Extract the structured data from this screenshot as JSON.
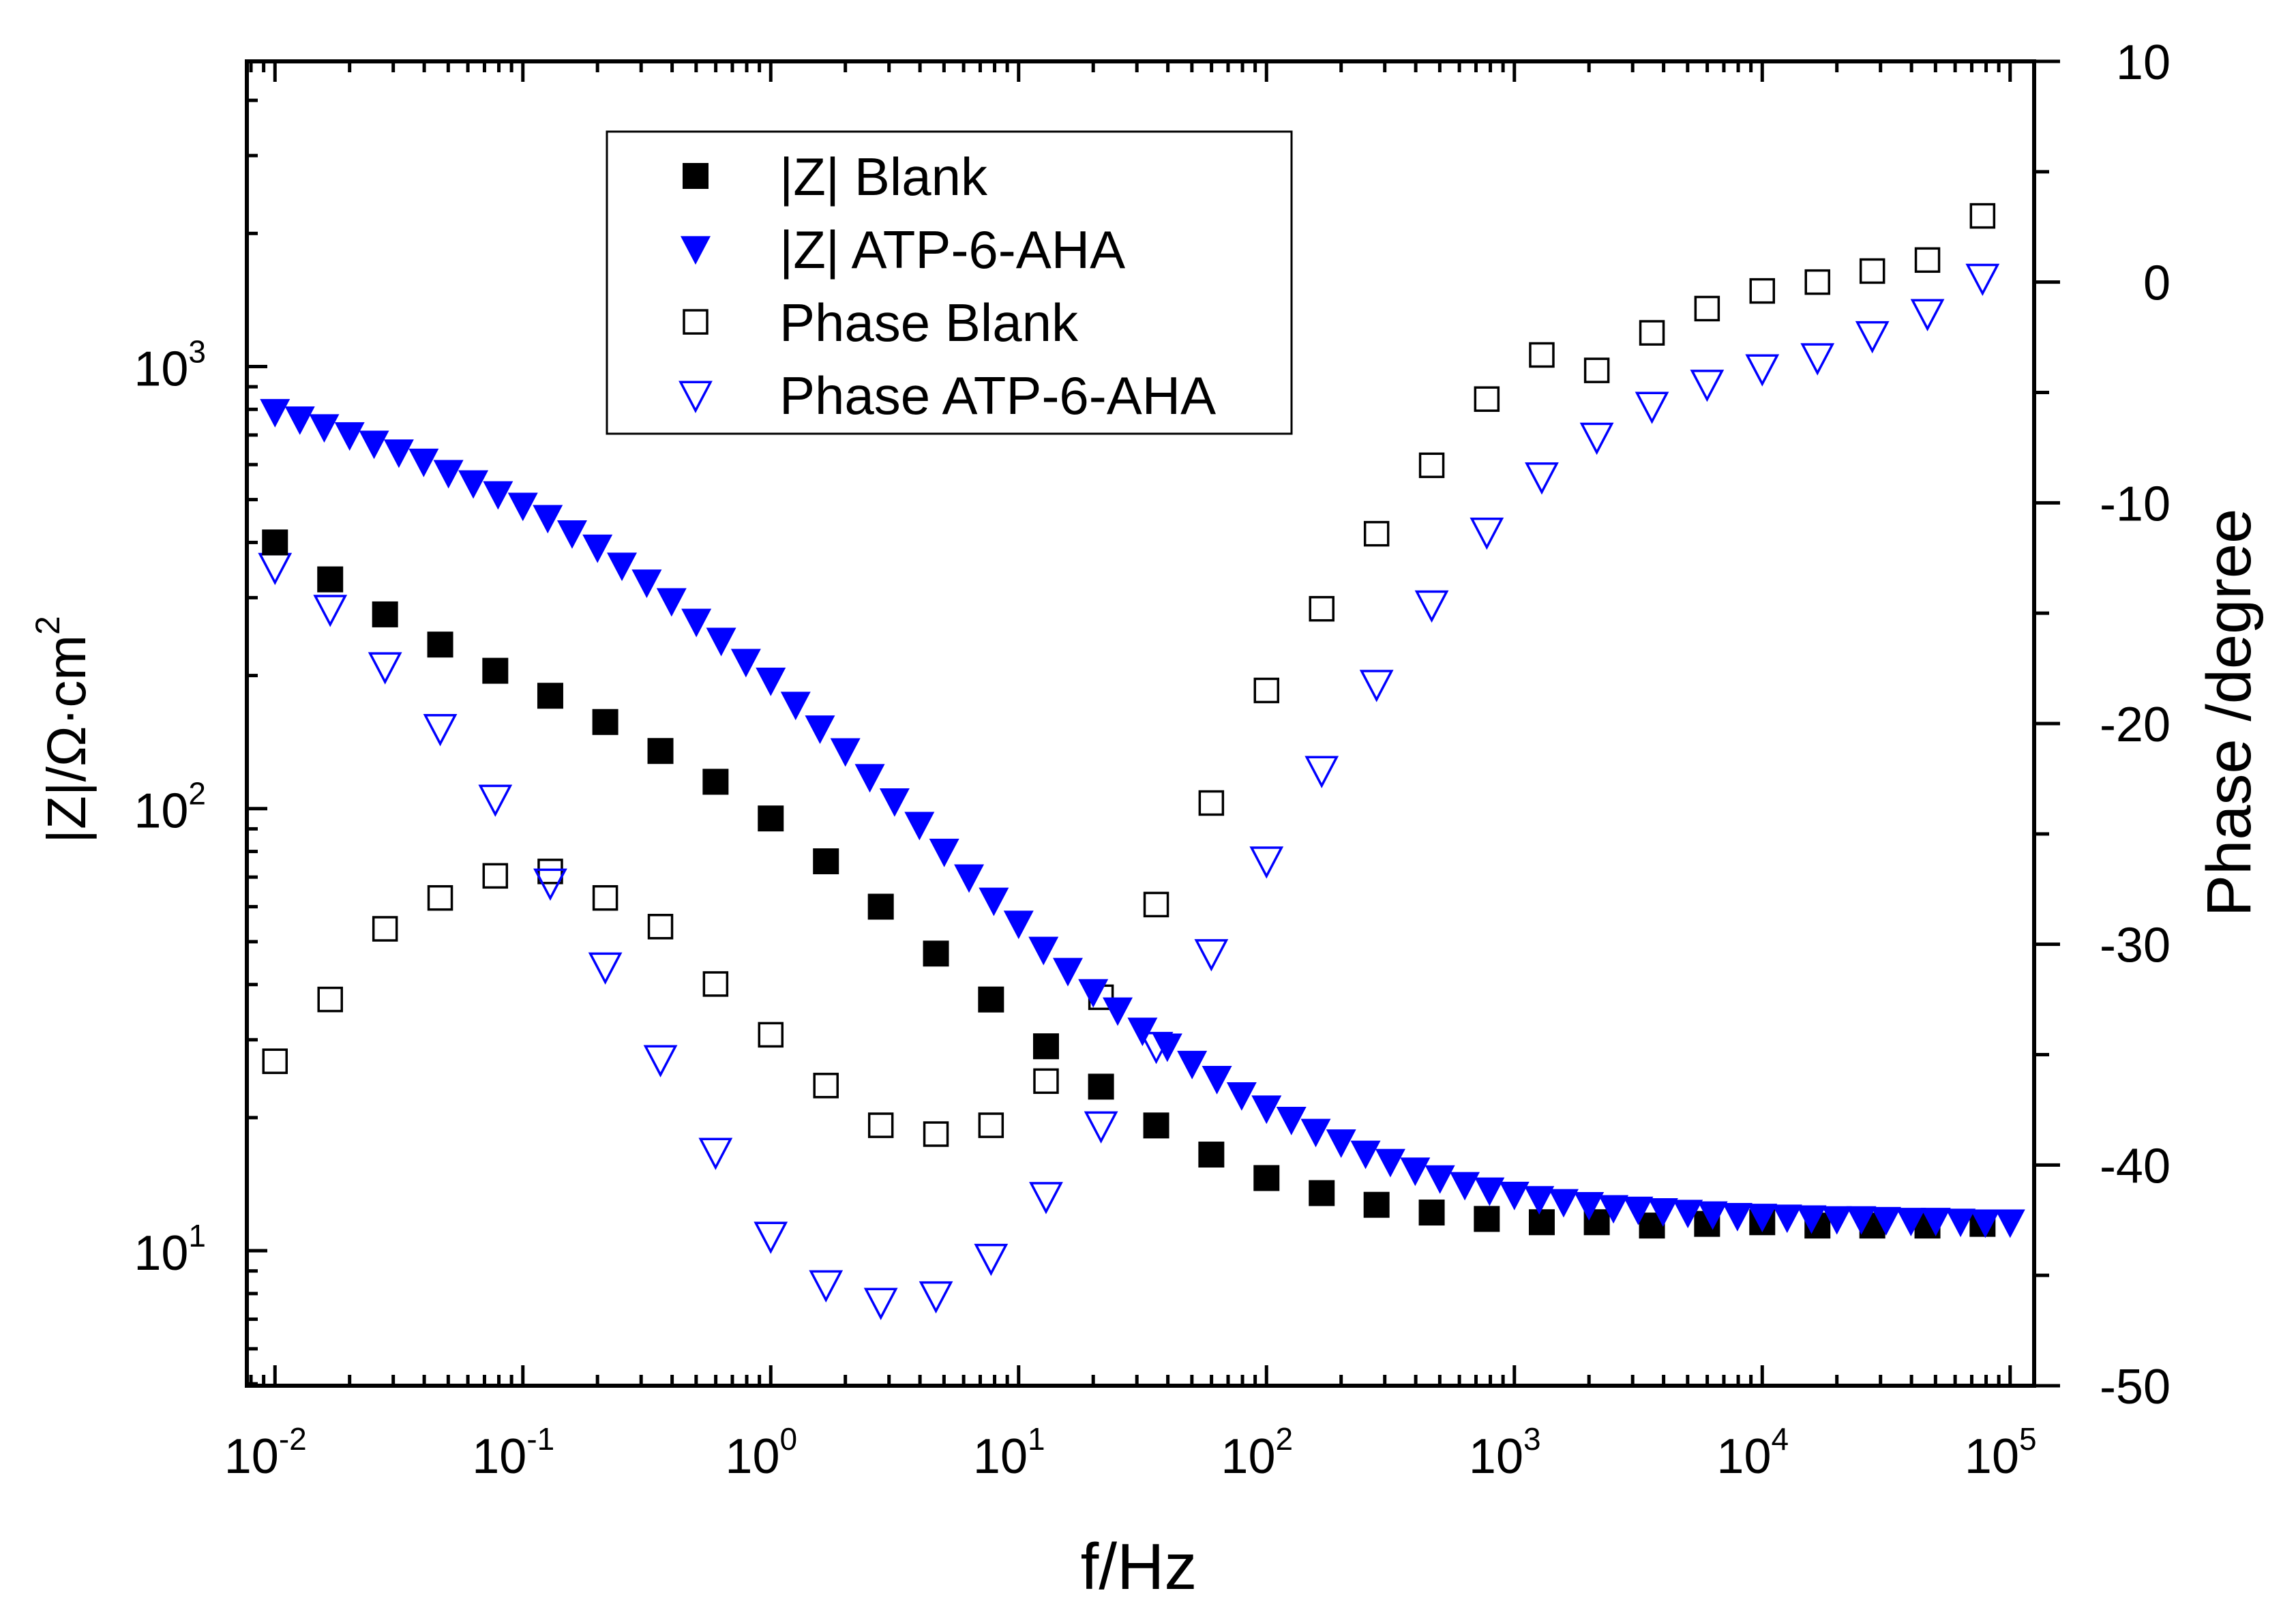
{
  "chart_data": {
    "type": "scatter",
    "title": "",
    "xlabel": "f/Hz",
    "ylabel_left": "|Z|/Ω·cm²",
    "ylabel_left_parts": {
      "main": "|Z|/Ω·cm",
      "sup": "2"
    },
    "ylabel_right": "Phase /degree",
    "x_scale": "log",
    "xlim": [
      0.0077,
      125000
    ],
    "y_left_scale": "log",
    "y_left_lim": [
      4.95,
      4900
    ],
    "y_right_lim": [
      -50,
      10
    ],
    "grid": false,
    "legend_position": "top-center",
    "x_ticks": [
      {
        "base": "10",
        "exp": "-2",
        "value": 0.01
      },
      {
        "base": "10",
        "exp": "-1",
        "value": 0.1
      },
      {
        "base": "10",
        "exp": "0",
        "value": 1
      },
      {
        "base": "10",
        "exp": "1",
        "value": 10
      },
      {
        "base": "10",
        "exp": "2",
        "value": 100
      },
      {
        "base": "10",
        "exp": "3",
        "value": 1000
      },
      {
        "base": "10",
        "exp": "4",
        "value": 10000
      },
      {
        "base": "10",
        "exp": "5",
        "value": 100000
      }
    ],
    "y_left_ticks": [
      {
        "base": "10",
        "exp": "1",
        "value": 10
      },
      {
        "base": "10",
        "exp": "2",
        "value": 100
      },
      {
        "base": "10",
        "exp": "3",
        "value": 1000
      }
    ],
    "y_right_ticks": [
      "10",
      "0",
      "-10",
      "-20",
      "-30",
      "-40",
      "-50"
    ],
    "series": [
      {
        "name": "|Z| Blank",
        "axis": "left",
        "marker": "square-filled",
        "color": "#000000",
        "x": [
          0.01,
          0.0167,
          0.0278,
          0.0464,
          0.0774,
          0.129,
          0.215,
          0.359,
          0.599,
          1.0,
          1.67,
          2.78,
          4.64,
          7.74,
          12.9,
          21.5,
          35.9,
          59.9,
          100,
          167,
          278,
          464,
          774,
          1290,
          2150,
          3590,
          5990,
          10000,
          16700,
          27800,
          46400,
          77400
        ],
        "values": [
          400,
          330,
          275,
          235,
          205,
          180,
          157,
          135,
          115,
          95,
          76,
          60,
          47,
          37,
          29,
          23.5,
          19.2,
          16.5,
          14.6,
          13.5,
          12.7,
          12.2,
          11.8,
          11.6,
          11.6,
          11.4,
          11.5,
          11.6,
          11.4,
          11.4,
          11.4,
          11.5
        ]
      },
      {
        "name": "|Z| ATP-6-AHA",
        "axis": "left",
        "marker": "triangle-down-filled",
        "color": "#0000FF",
        "x": [
          0.01,
          0.0126,
          0.0158,
          0.02,
          0.0251,
          0.0316,
          0.0398,
          0.0501,
          0.0631,
          0.0794,
          0.1,
          0.126,
          0.158,
          0.2,
          0.251,
          0.316,
          0.398,
          0.501,
          0.631,
          0.794,
          1.0,
          1.26,
          1.58,
          2.0,
          2.51,
          3.16,
          3.98,
          5.01,
          6.31,
          7.94,
          10,
          12.6,
          15.8,
          20,
          25.1,
          31.6,
          39.8,
          50.1,
          63.1,
          79.4,
          100,
          126,
          158,
          200,
          251,
          316,
          398,
          501,
          631,
          794,
          1000,
          1260,
          1580,
          2000,
          2510,
          3160,
          3980,
          5010,
          6310,
          7940,
          10000,
          12600,
          15800,
          20000,
          25100,
          31600,
          39800,
          50100,
          63100,
          79400,
          100000
        ],
        "values": [
          790,
          760,
          730,
          700,
          670,
          640,
          610,
          575,
          545,
          515,
          485,
          455,
          420,
          390,
          355,
          325,
          295,
          265,
          240,
          215,
          195,
          172,
          152,
          135,
          118,
          104,
          92,
          80,
          70,
          62,
          55,
          48,
          43,
          38.5,
          35,
          31.5,
          29,
          26.5,
          24.5,
          22.5,
          21,
          19.8,
          18.6,
          17.6,
          16.6,
          15.9,
          15.2,
          14.6,
          14.1,
          13.7,
          13.4,
          13.1,
          12.9,
          12.7,
          12.5,
          12.4,
          12.3,
          12.2,
          12.1,
          12.0,
          11.95,
          11.9,
          11.85,
          11.8,
          11.8,
          11.75,
          11.7,
          11.7,
          11.65,
          11.6,
          11.6
        ]
      },
      {
        "name": "Phase Blank",
        "axis": "right",
        "marker": "square-open",
        "color": "#000000",
        "x": [
          0.01,
          0.0167,
          0.0278,
          0.0464,
          0.0774,
          0.129,
          0.215,
          0.359,
          0.599,
          1.0,
          1.67,
          2.78,
          4.64,
          7.74,
          12.9,
          21.5,
          35.9,
          59.9,
          100,
          167,
          278,
          464,
          774,
          1290,
          2150,
          3590,
          5990,
          10000,
          16700,
          27800,
          46400,
          77400
        ],
        "values": [
          -35.3,
          -32.5,
          -29.3,
          -27.9,
          -26.9,
          -26.7,
          -27.9,
          -29.2,
          -31.8,
          -34.1,
          -36.4,
          -38.2,
          -38.6,
          -38.2,
          -36.2,
          -32.4,
          -28.2,
          -23.6,
          -18.5,
          -14.8,
          -11.4,
          -8.3,
          -5.3,
          -3.3,
          -4.0,
          -2.3,
          -1.2,
          -0.4,
          0.0,
          0.5,
          1.0,
          3.0
        ]
      },
      {
        "name": "Phase ATP-6-AHA",
        "axis": "right",
        "marker": "triangle-down-open",
        "color": "#0000FF",
        "x": [
          0.01,
          0.0167,
          0.0278,
          0.0464,
          0.0774,
          0.129,
          0.215,
          0.359,
          0.599,
          1.0,
          1.67,
          2.78,
          4.64,
          7.74,
          12.9,
          21.5,
          35.9,
          59.9,
          100,
          167,
          278,
          464,
          774,
          1290,
          2150,
          3590,
          5990,
          10000,
          16700,
          27800,
          46400,
          77400
        ],
        "values": [
          -12.9,
          -14.8,
          -17.4,
          -20.2,
          -23.4,
          -27.2,
          -31.0,
          -35.2,
          -39.4,
          -43.2,
          -45.4,
          -46.2,
          -45.9,
          -44.2,
          -41.4,
          -38.2,
          -34.6,
          -30.4,
          -26.2,
          -22.1,
          -18.2,
          -14.6,
          -11.3,
          -8.8,
          -7.0,
          -5.6,
          -4.6,
          -3.9,
          -3.4,
          -2.4,
          -1.4,
          0.2
        ]
      }
    ]
  }
}
